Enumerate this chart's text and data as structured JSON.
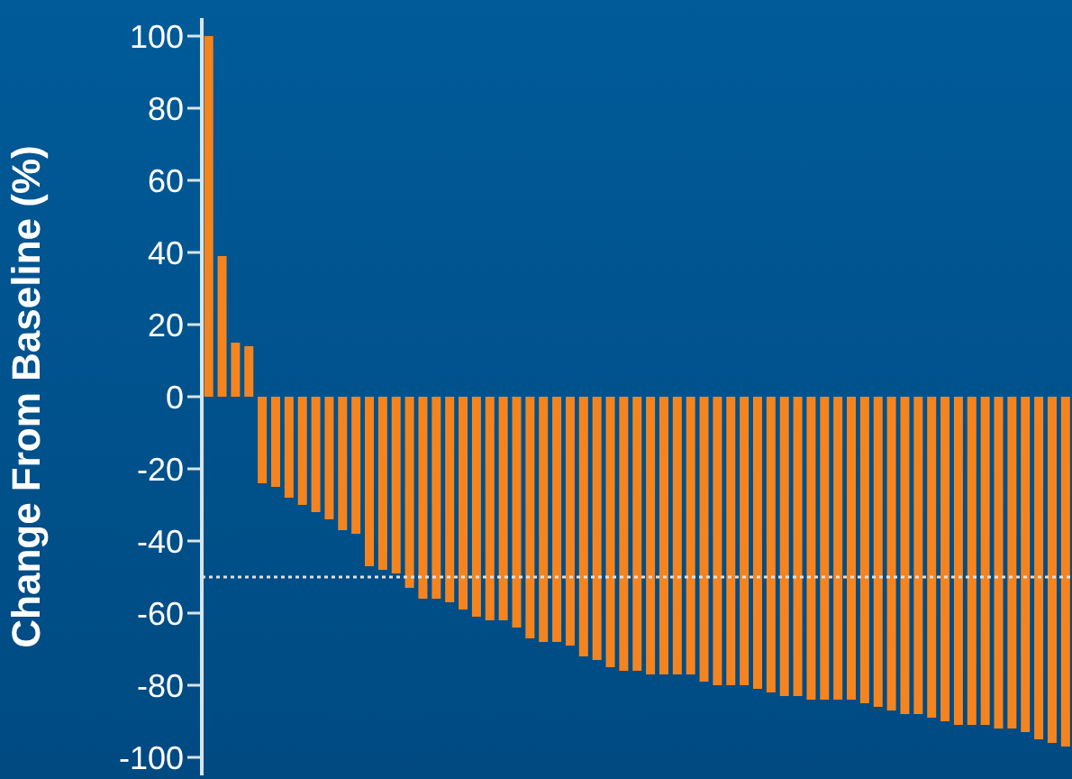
{
  "chart_data": {
    "type": "bar",
    "ylabel": "Change From Baseline (%)",
    "categories": [
      null,
      null,
      null,
      null,
      null,
      null,
      null,
      null,
      null,
      null,
      null,
      null,
      null,
      null,
      null,
      null,
      null,
      null,
      null,
      null,
      null,
      null,
      null,
      null,
      null,
      null,
      null,
      null,
      null,
      null,
      null,
      null,
      null,
      null,
      null,
      null,
      null,
      null,
      null,
      null,
      null,
      null,
      null,
      null,
      null,
      null,
      null,
      null,
      null,
      null,
      null,
      null,
      null,
      null,
      null,
      null,
      null,
      null,
      null,
      null,
      null,
      null,
      null,
      null,
      null
    ],
    "values": [
      100,
      39,
      15,
      14,
      -24,
      -25,
      -28,
      -30,
      -32,
      -34,
      -37,
      -38,
      -47,
      -48,
      -49,
      -53,
      -56,
      -56,
      -57,
      -59,
      -61,
      -62,
      -62,
      -64,
      -67,
      -68,
      -68,
      -69,
      -72,
      -73,
      -75,
      -76,
      -76,
      -77,
      -77,
      -77,
      -77,
      -79,
      -80,
      -80,
      -80,
      -81,
      -82,
      -83,
      -83,
      -84,
      -84,
      -84,
      -84,
      -85,
      -86,
      -87,
      -88,
      -88,
      -89,
      -90,
      -91,
      -91,
      -91,
      -92,
      -92,
      -93,
      -95,
      -96,
      -97
    ],
    "color": "#f5841f",
    "ylim": [
      -105,
      105
    ],
    "yticks": [
      -100,
      -80,
      -60,
      -40,
      -20,
      0,
      20,
      40,
      60,
      80,
      100
    ],
    "tick_labels": "y",
    "ref_lines": [
      {
        "axis": "y",
        "value": -50,
        "color": "#e0e0e0",
        "line_style": "dotted"
      }
    ]
  }
}
